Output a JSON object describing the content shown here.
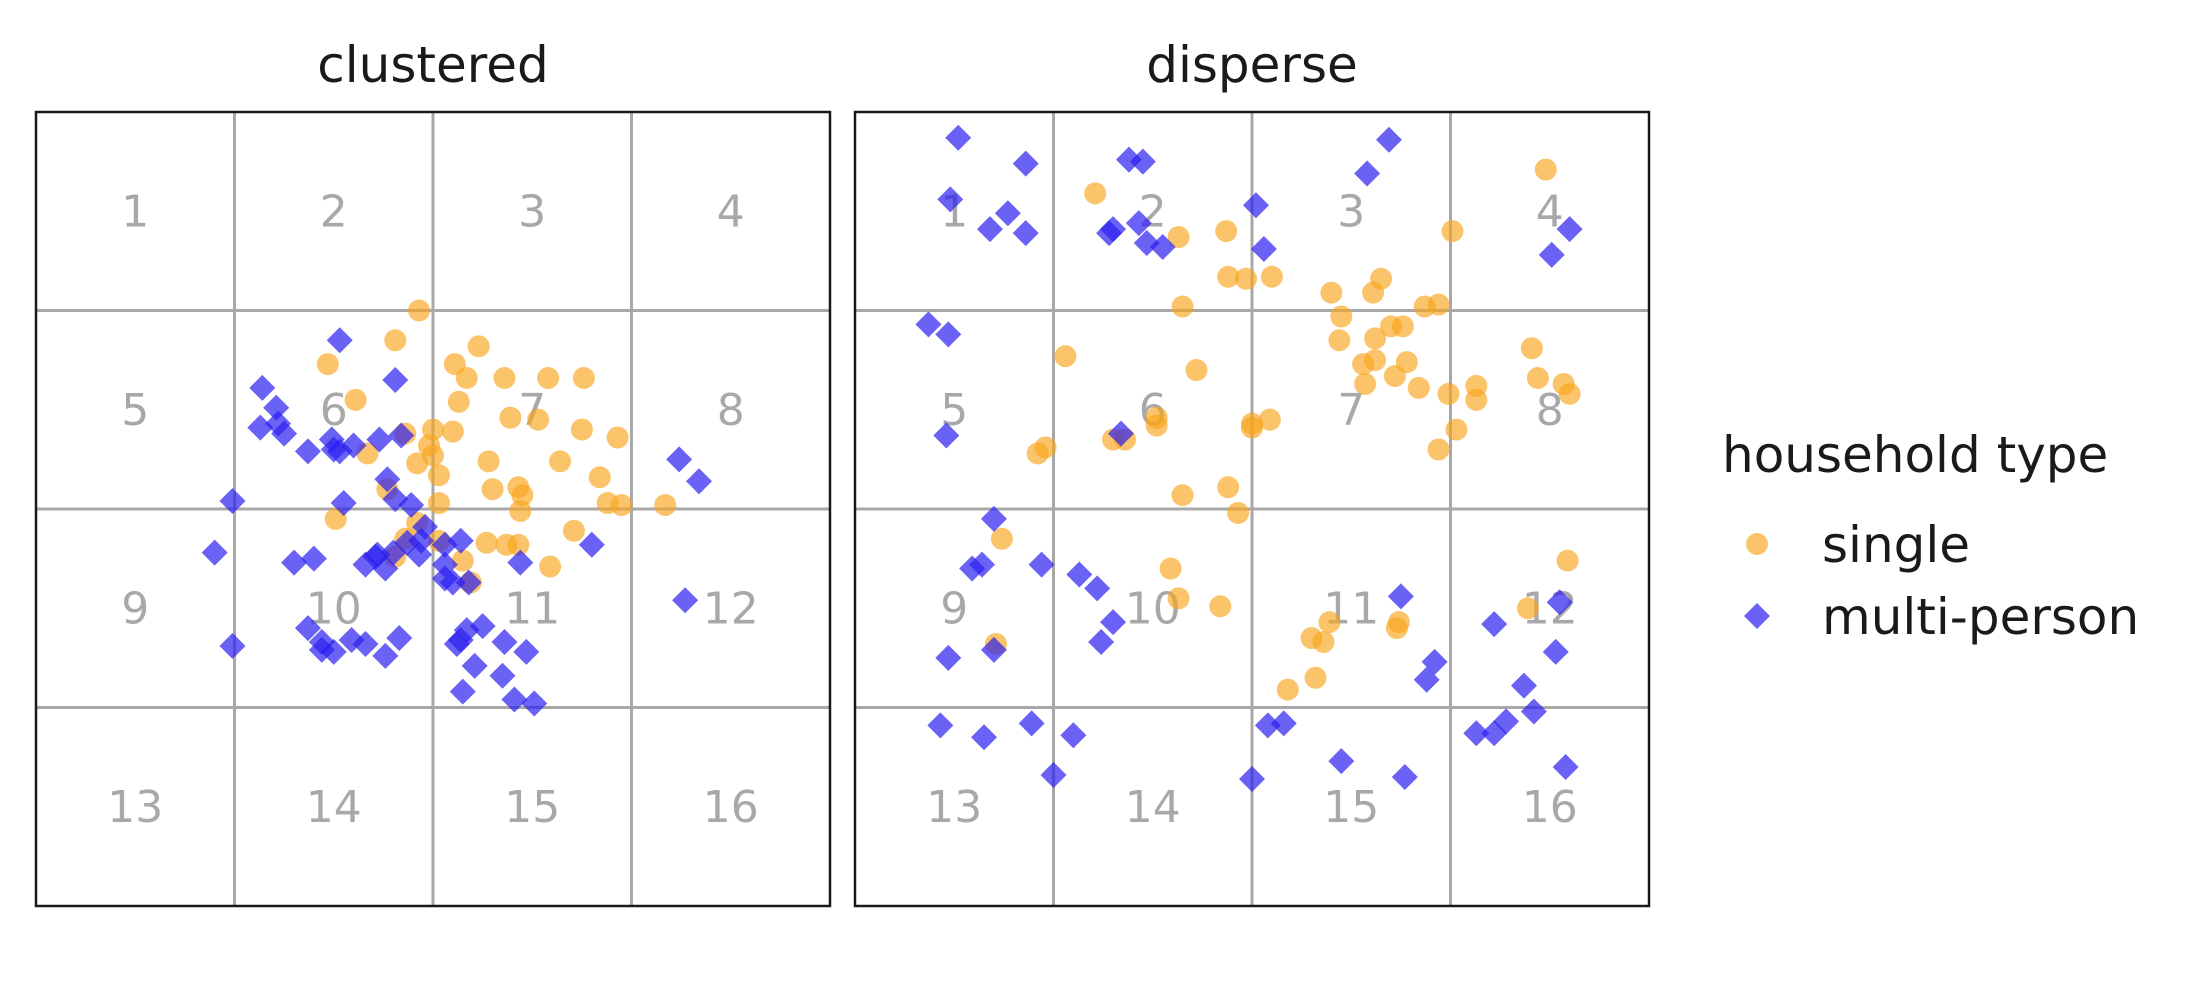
{
  "chart_data": {
    "type": "scatter",
    "grid": true,
    "xlim": [
      0,
      4
    ],
    "ylim": [
      0,
      4
    ],
    "colors": {
      "single": "#f9a51a",
      "multi-person": "#2b1ff0",
      "grid": "#a8a8a8"
    },
    "cell_labels": [
      "1",
      "2",
      "3",
      "4",
      "5",
      "6",
      "7",
      "8",
      "9",
      "10",
      "11",
      "12",
      "13",
      "14",
      "15",
      "16"
    ],
    "legend": {
      "title": "household type",
      "entries": [
        {
          "label": "single",
          "marker": "circle",
          "color": "#f9a51a"
        },
        {
          "label": "multi-person",
          "marker": "diamond",
          "color": "#2b1ff0"
        }
      ],
      "placement": "right"
    },
    "panels": [
      {
        "title": "clustered",
        "series": [
          {
            "name": "single",
            "points": [
              [
                1.93,
                3.0
              ],
              [
                1.81,
                2.85
              ],
              [
                1.47,
                2.73
              ],
              [
                2.11,
                2.73
              ],
              [
                2.23,
                2.82
              ],
              [
                2.17,
                2.66
              ],
              [
                2.36,
                2.66
              ],
              [
                2.58,
                2.66
              ],
              [
                2.76,
                2.66
              ],
              [
                1.61,
                2.55
              ],
              [
                2.13,
                2.54
              ],
              [
                2.39,
                2.46
              ],
              [
                2.53,
                2.45
              ],
              [
                2.75,
                2.4
              ],
              [
                2.1,
                2.39
              ],
              [
                2.0,
                2.4
              ],
              [
                1.86,
                2.38
              ],
              [
                1.98,
                2.32
              ],
              [
                1.67,
                2.28
              ],
              [
                2.0,
                2.27
              ],
              [
                2.93,
                2.36
              ],
              [
                1.92,
                2.23
              ],
              [
                2.03,
                2.17
              ],
              [
                2.28,
                2.24
              ],
              [
                2.64,
                2.24
              ],
              [
                2.84,
                2.16
              ],
              [
                1.77,
                2.1
              ],
              [
                2.3,
                2.1
              ],
              [
                2.43,
                2.11
              ],
              [
                2.45,
                2.07
              ],
              [
                2.03,
                2.03
              ],
              [
                2.44,
                1.99
              ],
              [
                2.88,
                2.03
              ],
              [
                2.95,
                2.02
              ],
              [
                3.17,
                2.02
              ],
              [
                1.51,
                1.95
              ],
              [
                1.92,
                1.93
              ],
              [
                2.71,
                1.89
              ],
              [
                1.86,
                1.85
              ],
              [
                2.03,
                1.84
              ],
              [
                2.27,
                1.83
              ],
              [
                2.37,
                1.82
              ],
              [
                2.43,
                1.82
              ],
              [
                1.81,
                1.76
              ],
              [
                2.15,
                1.74
              ],
              [
                2.59,
                1.71
              ],
              [
                2.19,
                1.63
              ]
            ]
          },
          {
            "name": "multi-person",
            "points": [
              [
                1.53,
                2.85
              ],
              [
                1.81,
                2.65
              ],
              [
                1.14,
                2.61
              ],
              [
                1.21,
                2.51
              ],
              [
                1.13,
                2.41
              ],
              [
                1.22,
                2.43
              ],
              [
                1.25,
                2.38
              ],
              [
                1.37,
                2.29
              ],
              [
                1.53,
                2.29
              ],
              [
                1.6,
                2.32
              ],
              [
                1.73,
                2.35
              ],
              [
                1.84,
                2.37
              ],
              [
                1.49,
                2.35
              ],
              [
                1.5,
                2.3
              ],
              [
                1.77,
                2.15
              ],
              [
                0.99,
                2.04
              ],
              [
                1.55,
                2.03
              ],
              [
                1.81,
                2.05
              ],
              [
                1.89,
                2.02
              ],
              [
                1.96,
                1.91
              ],
              [
                1.94,
                1.84
              ],
              [
                1.87,
                1.83
              ],
              [
                1.93,
                1.77
              ],
              [
                0.9,
                1.78
              ],
              [
                1.3,
                1.73
              ],
              [
                1.4,
                1.75
              ],
              [
                1.71,
                1.76
              ],
              [
                1.72,
                1.77
              ],
              [
                1.8,
                1.78
              ],
              [
                2.06,
                1.82
              ],
              [
                2.14,
                1.84
              ],
              [
                1.66,
                1.72
              ],
              [
                1.76,
                1.7
              ],
              [
                2.06,
                1.72
              ],
              [
                2.1,
                1.63
              ],
              [
                2.06,
                1.65
              ],
              [
                2.18,
                1.63
              ],
              [
                2.44,
                1.73
              ],
              [
                2.8,
                1.82
              ],
              [
                3.24,
                2.25
              ],
              [
                3.34,
                2.14
              ],
              [
                1.37,
                1.4
              ],
              [
                1.44,
                1.33
              ],
              [
                1.59,
                1.34
              ],
              [
                1.5,
                1.28
              ],
              [
                1.44,
                1.29
              ],
              [
                1.66,
                1.32
              ],
              [
                1.83,
                1.35
              ],
              [
                1.76,
                1.26
              ],
              [
                0.99,
                1.31
              ],
              [
                2.12,
                1.32
              ],
              [
                2.17,
                1.39
              ],
              [
                2.25,
                1.41
              ],
              [
                2.14,
                1.34
              ],
              [
                2.36,
                1.33
              ],
              [
                2.21,
                1.21
              ],
              [
                2.35,
                1.16
              ],
              [
                2.15,
                1.08
              ],
              [
                2.41,
                1.04
              ],
              [
                2.51,
                1.02
              ],
              [
                2.47,
                1.28
              ],
              [
                3.27,
                1.54
              ]
            ]
          }
        ]
      },
      {
        "title": "disperse",
        "series": [
          {
            "name": "single",
            "points": [
              [
                1.21,
                3.59
              ],
              [
                1.63,
                3.37
              ],
              [
                1.87,
                3.4
              ],
              [
                1.97,
                3.16
              ],
              [
                2.1,
                3.17
              ],
              [
                1.65,
                3.02
              ],
              [
                1.88,
                3.17
              ],
              [
                2.44,
                2.85
              ],
              [
                2.61,
                3.09
              ],
              [
                2.65,
                3.16
              ],
              [
                2.4,
                3.09
              ],
              [
                2.45,
                2.97
              ],
              [
                2.56,
                2.73
              ],
              [
                2.7,
                2.92
              ],
              [
                2.76,
                2.92
              ],
              [
                2.78,
                2.74
              ],
              [
                2.87,
                3.02
              ],
              [
                3.01,
                3.4
              ],
              [
                3.48,
                3.71
              ],
              [
                3.41,
                2.81
              ],
              [
                3.44,
                2.66
              ],
              [
                2.94,
                3.03
              ],
              [
                2.62,
                2.86
              ],
              [
                2.72,
                2.67
              ],
              [
                2.62,
                2.75
              ],
              [
                2.84,
                2.61
              ],
              [
                2.99,
                2.58
              ],
              [
                3.13,
                2.62
              ],
              [
                3.13,
                2.55
              ],
              [
                3.03,
                2.4
              ],
              [
                2.94,
                2.3
              ],
              [
                2.57,
                2.63
              ],
              [
                1.06,
                2.77
              ],
              [
                1.52,
                2.42
              ],
              [
                2.0,
                2.41
              ],
              [
                2.0,
                2.43
              ],
              [
                2.09,
                2.45
              ],
              [
                3.57,
                2.63
              ],
              [
                3.6,
                2.58
              ],
              [
                1.72,
                2.7
              ],
              [
                1.3,
                2.35
              ],
              [
                0.96,
                2.31
              ],
              [
                0.92,
                2.28
              ],
              [
                1.36,
                2.35
              ],
              [
                1.52,
                2.46
              ],
              [
                1.65,
                2.07
              ],
              [
                1.88,
                2.11
              ],
              [
                1.93,
                1.98
              ],
              [
                1.59,
                1.7
              ],
              [
                0.74,
                1.85
              ],
              [
                1.63,
                1.55
              ],
              [
                1.84,
                1.51
              ],
              [
                2.39,
                1.43
              ],
              [
                2.3,
                1.35
              ],
              [
                0.71,
                1.32
              ],
              [
                2.74,
                1.43
              ],
              [
                2.73,
                1.4
              ],
              [
                3.39,
                1.5
              ],
              [
                3.59,
                1.74
              ],
              [
                2.18,
                1.09
              ],
              [
                2.32,
                1.15
              ],
              [
                2.36,
                1.33
              ]
            ]
          },
          {
            "name": "multi-person",
            "points": [
              [
                0.52,
                3.87
              ],
              [
                0.86,
                3.74
              ],
              [
                1.38,
                3.76
              ],
              [
                1.45,
                3.75
              ],
              [
                0.48,
                3.56
              ],
              [
                1.43,
                3.44
              ],
              [
                2.02,
                3.53
              ],
              [
                2.69,
                3.86
              ],
              [
                2.58,
                3.69
              ],
              [
                0.77,
                3.49
              ],
              [
                0.68,
                3.41
              ],
              [
                0.86,
                3.39
              ],
              [
                1.3,
                3.41
              ],
              [
                1.47,
                3.34
              ],
              [
                1.55,
                3.32
              ],
              [
                2.06,
                3.31
              ],
              [
                3.6,
                3.41
              ],
              [
                3.51,
                3.28
              ],
              [
                1.28,
                3.39
              ],
              [
                0.37,
                2.93
              ],
              [
                0.47,
                2.88
              ],
              [
                0.46,
                2.37
              ],
              [
                1.34,
                2.38
              ],
              [
                0.7,
                1.95
              ],
              [
                0.64,
                1.72
              ],
              [
                0.59,
                1.7
              ],
              [
                0.94,
                1.72
              ],
              [
                1.13,
                1.67
              ],
              [
                1.22,
                1.6
              ],
              [
                1.24,
                1.33
              ],
              [
                1.3,
                1.43
              ],
              [
                0.7,
                1.29
              ],
              [
                0.47,
                1.25
              ],
              [
                2.75,
                1.56
              ],
              [
                3.22,
                1.42
              ],
              [
                3.55,
                1.53
              ],
              [
                3.53,
                1.28
              ],
              [
                3.37,
                1.11
              ],
              [
                3.42,
                0.98
              ],
              [
                3.28,
                0.93
              ],
              [
                3.22,
                0.87
              ],
              [
                2.08,
                0.91
              ],
              [
                2.16,
                0.92
              ],
              [
                2.45,
                0.73
              ],
              [
                3.13,
                0.87
              ],
              [
                2.88,
                1.14
              ],
              [
                2.92,
                1.23
              ],
              [
                0.43,
                0.91
              ],
              [
                0.65,
                0.85
              ],
              [
                0.89,
                0.92
              ],
              [
                1.1,
                0.86
              ],
              [
                2.0,
                0.64
              ],
              [
                1.0,
                0.66
              ],
              [
                2.77,
                0.65
              ],
              [
                3.58,
                0.7
              ]
            ]
          }
        ]
      }
    ]
  }
}
